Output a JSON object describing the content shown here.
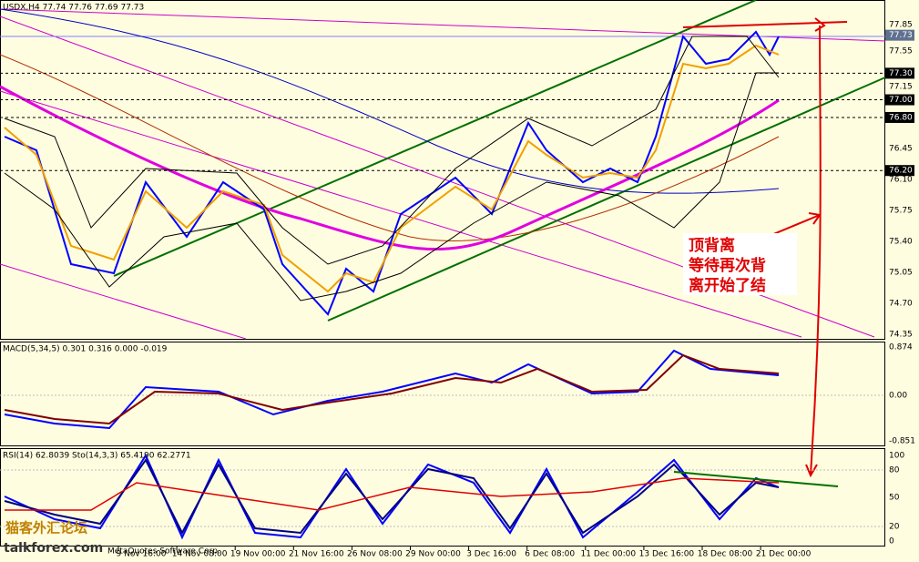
{
  "main_panel": {
    "header": "USDX,H4 77.74 77.76 77.69 77.73",
    "price_labels": [
      "77.85",
      "77.55",
      "77.15",
      "76.45",
      "76.10",
      "75.75",
      "75.40",
      "75.05",
      "74.70",
      "74.35"
    ],
    "level_labels": [
      "77.30",
      "77.00",
      "76.80",
      "76.20"
    ],
    "current_price": "77.73",
    "annotation": [
      "顶背离",
      "等待再次背",
      "离开始了结"
    ]
  },
  "macd_panel": {
    "header": "MACD(5,34,5) 0.301 0.316 0.000 -0.019",
    "axis_labels": [
      "0.874",
      "0.00",
      "-0.851"
    ]
  },
  "rsi_panel": {
    "header": "RSI(14) 62.8039 Sto(14,3,3) 65.4190 62.2771",
    "axis_labels": [
      "100",
      "80",
      "50",
      "20",
      "0"
    ]
  },
  "time_axis": [
    "9 Nov 16:00",
    "14 Nov 08:00",
    "19 Nov 00:00",
    "21 Nov 16:00",
    "26 Nov 08:00",
    "29 Nov 00:00",
    "3 Dec 16:00",
    "6 Dec 08:00",
    "11 Dec 00:00",
    "13 Dec 16:00",
    "18 Dec 08:00",
    "21 Dec 00:00"
  ],
  "watermark": {
    "site_name": "猫客外汇论坛",
    "url": "talkforex.com",
    "copyright": "MetaQuotes Software Corp."
  }
}
